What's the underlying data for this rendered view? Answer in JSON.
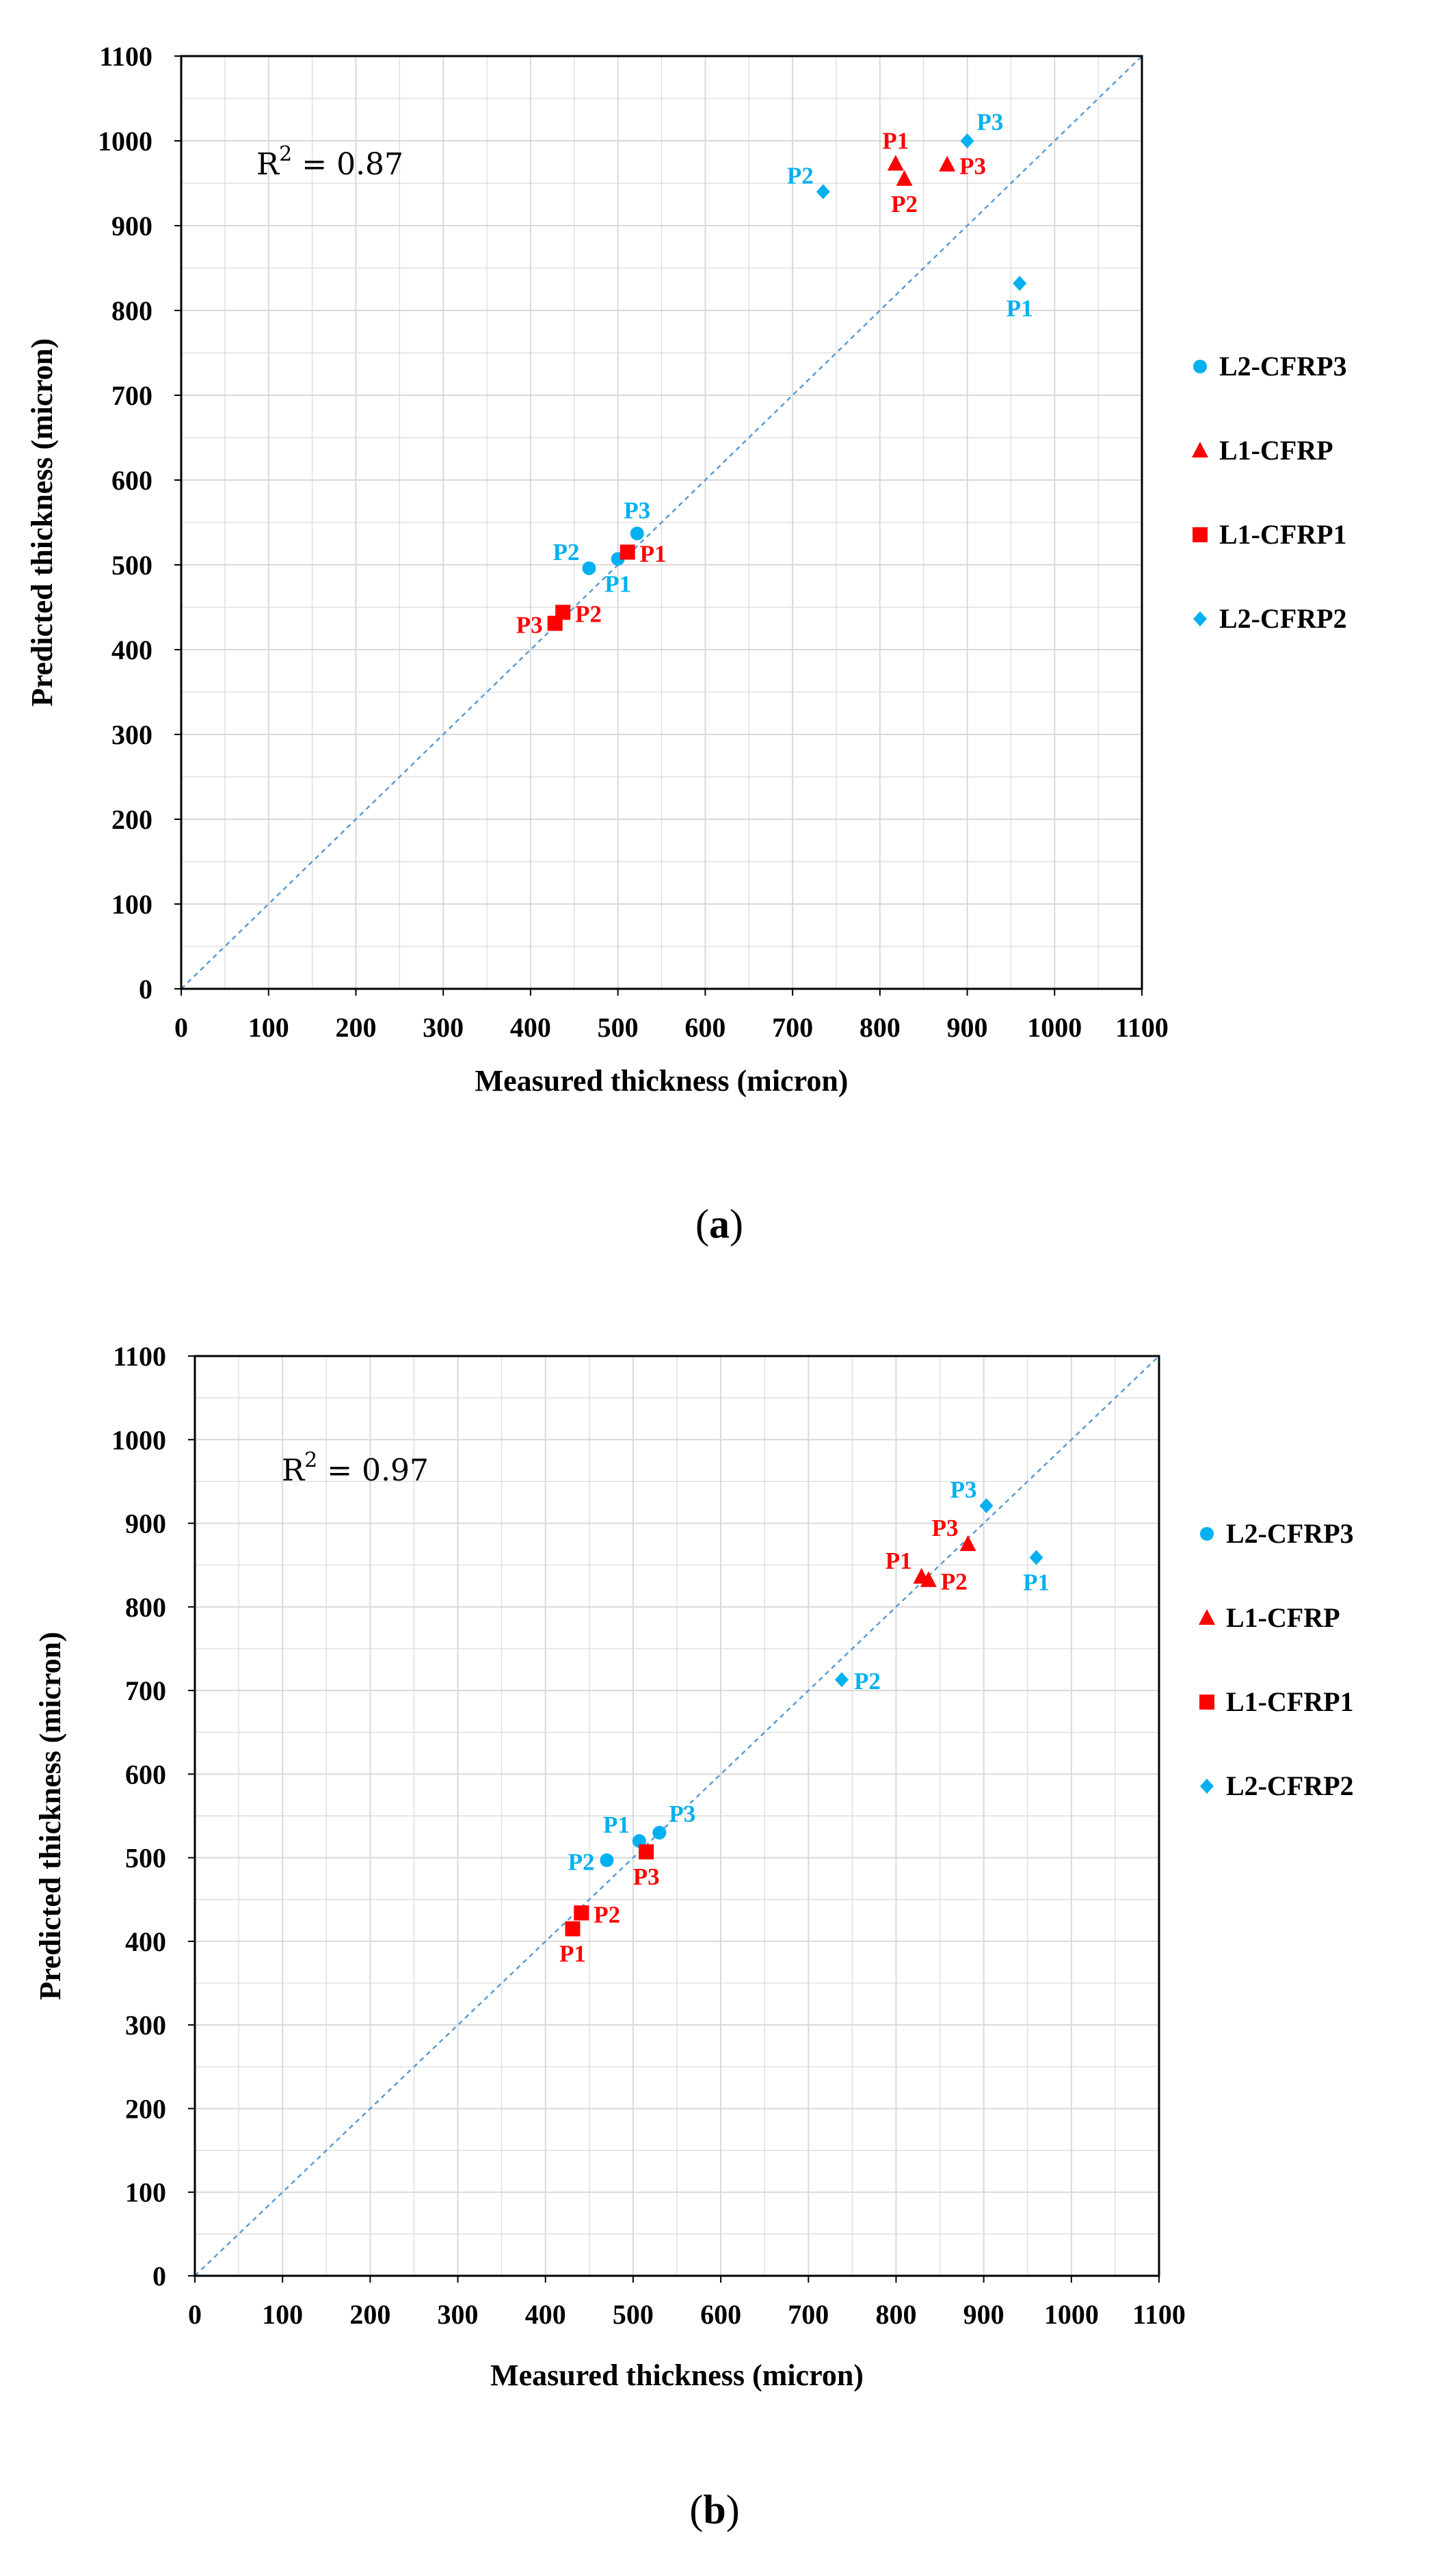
{
  "colors": {
    "L2-CFRP3": "#00b0f0",
    "L1-CFRP": "#ff0000",
    "L1-CFRP1": "#ff0000",
    "L2-CFRP2": "#00b0f0",
    "diagonal": "#5b9bd5",
    "grid": "#d9d9d9"
  },
  "chart_data": [
    {
      "type": "scatter",
      "caption": "a",
      "r2_label": "0.87",
      "xlabel": "Measured thickness (micron)",
      "ylabel": "Predicted thickness (micron)",
      "xlim": [
        0,
        1100
      ],
      "ylim": [
        0,
        1100
      ],
      "tick_step": 100,
      "xticks": [
        "0",
        "100",
        "200",
        "300",
        "400",
        "500",
        "600",
        "700",
        "800",
        "900",
        "1000",
        "1100"
      ],
      "yticks": [
        "0",
        "100",
        "200",
        "300",
        "400",
        "500",
        "600",
        "700",
        "800",
        "900",
        "1000",
        "1100"
      ],
      "legend": [
        {
          "name": "L2-CFRP3",
          "marker": "circle"
        },
        {
          "name": "L1-CFRP",
          "marker": "triangle"
        },
        {
          "name": "L1-CFRP1",
          "marker": "square"
        },
        {
          "name": "L2-CFRP2",
          "marker": "diamond"
        }
      ],
      "series": [
        {
          "name": "L2-CFRP3",
          "marker": "circle",
          "points": [
            {
              "x": 500,
              "y": 507,
              "label": "P1",
              "pos": "below"
            },
            {
              "x": 467,
              "y": 496,
              "label": "P2",
              "pos": "upleft"
            },
            {
              "x": 522,
              "y": 537,
              "label": "P3",
              "pos": "above"
            }
          ]
        },
        {
          "name": "L1-CFRP",
          "marker": "triangle",
          "points": [
            {
              "x": 818,
              "y": 973,
              "label": "P1",
              "pos": "above"
            },
            {
              "x": 828,
              "y": 955,
              "label": "P2",
              "pos": "below"
            },
            {
              "x": 877,
              "y": 972,
              "label": "P3",
              "pos": "right"
            }
          ]
        },
        {
          "name": "L1-CFRP1",
          "marker": "square",
          "points": [
            {
              "x": 511,
              "y": 515,
              "label": "P1",
              "pos": "right"
            },
            {
              "x": 437,
              "y": 444,
              "label": "P2",
              "pos": "right"
            },
            {
              "x": 428,
              "y": 431,
              "label": "P3",
              "pos": "left"
            }
          ]
        },
        {
          "name": "L2-CFRP2",
          "marker": "diamond",
          "points": [
            {
              "x": 960,
              "y": 832,
              "label": "P1",
              "pos": "below"
            },
            {
              "x": 735,
              "y": 940,
              "label": "P2",
              "pos": "upleft"
            },
            {
              "x": 900,
              "y": 1000,
              "label": "P3",
              "pos": "upright"
            }
          ]
        }
      ]
    },
    {
      "type": "scatter",
      "caption": "b",
      "r2_label": "0.97",
      "xlabel": "Measured thickness (micron)",
      "ylabel": "Predicted thickness (micron)",
      "xlim": [
        0,
        1100
      ],
      "ylim": [
        0,
        1100
      ],
      "tick_step": 100,
      "xticks": [
        "0",
        "100",
        "200",
        "300",
        "400",
        "500",
        "600",
        "700",
        "800",
        "900",
        "1000",
        "1100"
      ],
      "yticks": [
        "0",
        "100",
        "200",
        "300",
        "400",
        "500",
        "600",
        "700",
        "800",
        "900",
        "1000",
        "1100"
      ],
      "legend": [
        {
          "name": "L2-CFRP3",
          "marker": "circle"
        },
        {
          "name": "L1-CFRP",
          "marker": "triangle"
        },
        {
          "name": "L1-CFRP1",
          "marker": "square"
        },
        {
          "name": "L2-CFRP2",
          "marker": "diamond"
        }
      ],
      "series": [
        {
          "name": "L2-CFRP3",
          "marker": "circle",
          "points": [
            {
              "x": 507,
              "y": 520,
              "label": "P1",
              "pos": "upleft"
            },
            {
              "x": 470,
              "y": 497,
              "label": "P2",
              "pos": "left"
            },
            {
              "x": 530,
              "y": 530,
              "label": "P3",
              "pos": "upright"
            }
          ]
        },
        {
          "name": "L1-CFRP",
          "marker": "triangle",
          "points": [
            {
              "x": 829,
              "y": 836,
              "label": "P1",
              "pos": "upleft"
            },
            {
              "x": 837,
              "y": 832,
              "label": "P2",
              "pos": "right"
            },
            {
              "x": 882,
              "y": 875,
              "label": "P3",
              "pos": "upleft"
            }
          ]
        },
        {
          "name": "L1-CFRP1",
          "marker": "square",
          "points": [
            {
              "x": 431,
              "y": 415,
              "label": "P1",
              "pos": "below"
            },
            {
              "x": 441,
              "y": 434,
              "label": "P2",
              "pos": "right"
            },
            {
              "x": 515,
              "y": 507,
              "label": "P3",
              "pos": "below"
            }
          ]
        },
        {
          "name": "L2-CFRP2",
          "marker": "diamond",
          "points": [
            {
              "x": 960,
              "y": 859,
              "label": "P1",
              "pos": "below"
            },
            {
              "x": 738,
              "y": 713,
              "label": "P2",
              "pos": "right"
            },
            {
              "x": 903,
              "y": 921,
              "label": "P3",
              "pos": "upleft"
            }
          ]
        }
      ]
    }
  ]
}
